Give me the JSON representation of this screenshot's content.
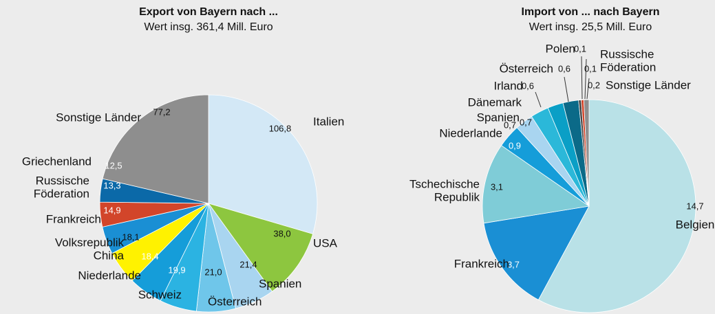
{
  "chart_data": [
    {
      "type": "pie",
      "title": "Export von Bayern nach ...",
      "subtitle": "Wert insg. 361,4 Mill. Euro",
      "categories": [
        "Italien",
        "USA",
        "Spanien",
        "Österreich",
        "Schweiz",
        "Niederlande",
        "Volksrepublik\nChina",
        "Frankreich",
        "Russische\nFöderation",
        "Griechenland",
        "Sonstige Länder"
      ],
      "values": [
        106.8,
        38.0,
        21.4,
        21.0,
        19.9,
        18.4,
        18.1,
        14.9,
        13.3,
        12.5,
        77.2
      ],
      "value_labels": [
        "106,8",
        "38,0",
        "21,4",
        "21,0",
        "19,9",
        "18,4",
        "18,1",
        "14,9",
        "13,3",
        "12,5",
        "77,2"
      ],
      "colors": [
        "#d3e8f6",
        "#8dc63f",
        "#a9d5f0",
        "#6fc6ea",
        "#2bb3e2",
        "#159dd9",
        "#fff200",
        "#1a8fd4",
        "#d2452a",
        "#0b69a8",
        "#8e8e8e"
      ]
    },
    {
      "type": "pie",
      "title": "Import von ... nach Bayern",
      "subtitle": "Wert insg. 25,5 Mill. Euro",
      "categories": [
        "Belgien",
        "Frankreich",
        "Tschechische\nRepublik",
        "Niederlande",
        "Spanien",
        "Dänemark",
        "Irland",
        "Österreich",
        "Polen",
        "Russische\nFöderation",
        "Sonstige Länder"
      ],
      "values": [
        14.7,
        3.7,
        3.1,
        0.9,
        0.7,
        0.7,
        0.6,
        0.6,
        0.1,
        0.1,
        0.2
      ],
      "value_labels": [
        "14,7",
        "3,7",
        "3,1",
        "0,9",
        "0,7",
        "0,7",
        "0,6",
        "0,6",
        "0,1",
        "0,1",
        "0,2"
      ],
      "colors": [
        "#b9e1e7",
        "#1a8fd4",
        "#7fccd7",
        "#159dd9",
        "#a9d5f0",
        "#2bb8d9",
        "#0a9fc6",
        "#0b6a88",
        "#444444",
        "#d2452a",
        "#8e8e8e"
      ]
    }
  ]
}
